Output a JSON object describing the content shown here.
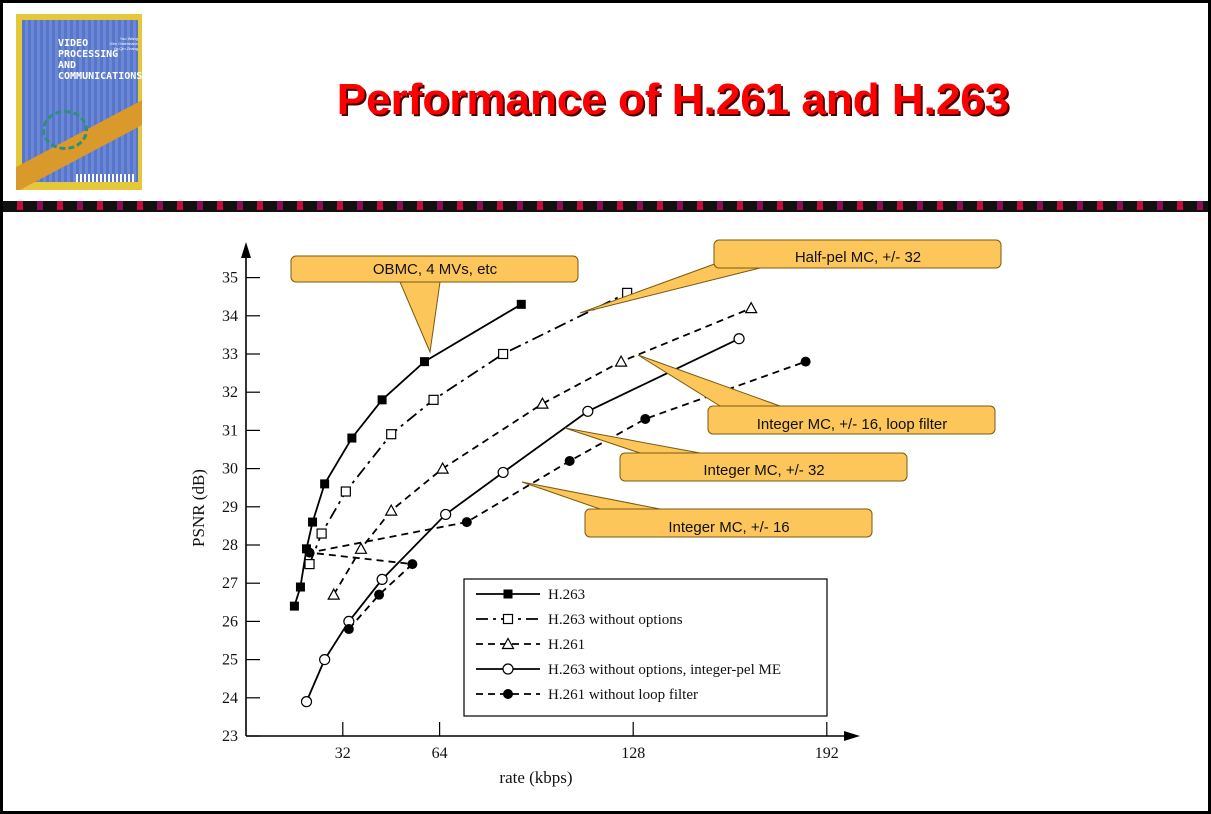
{
  "slide": {
    "title": "Performance of H.261 and H.263",
    "book_cover": {
      "lines": [
        "VIDEO",
        "PROCESSING",
        "AND",
        "COMMUNICATIONS"
      ],
      "authors": [
        "Yao Wang",
        "Jörn Ostermann",
        "Ya-Qin Zhang"
      ]
    }
  },
  "chart_data": {
    "type": "line",
    "xlabel": "rate (kbps)",
    "ylabel": "PSNR (dB)",
    "xlim": [
      0,
      192
    ],
    "ylim": [
      23,
      35
    ],
    "x_ticks": [
      32,
      64,
      128,
      192
    ],
    "y_ticks": [
      23,
      24,
      25,
      26,
      27,
      28,
      29,
      30,
      31,
      32,
      33,
      34,
      35
    ],
    "legend_position": "bottom-center",
    "series": [
      {
        "name": "H.263",
        "marker": "filled-square",
        "line": "solid",
        "x": [
          16,
          18,
          20,
          22,
          26,
          35,
          45,
          59,
          91
        ],
        "y": [
          26.4,
          26.9,
          27.9,
          28.6,
          29.6,
          30.8,
          31.8,
          32.8,
          34.3
        ]
      },
      {
        "name": "H.263 without options",
        "marker": "open-square",
        "line": "dash-dot",
        "x": [
          21,
          25,
          33,
          48,
          62,
          85,
          126
        ],
        "y": [
          27.5,
          28.3,
          29.4,
          30.9,
          31.8,
          33.0,
          34.6
        ]
      },
      {
        "name": "H.261",
        "marker": "open-triangle",
        "line": "dashed",
        "x": [
          29,
          38,
          48,
          65,
          98,
          124,
          167
        ],
        "y": [
          26.7,
          27.9,
          28.9,
          30.0,
          31.7,
          32.8,
          34.2
        ]
      },
      {
        "name": "H.263 without options, integer-pel ME",
        "marker": "open-circle",
        "line": "solid",
        "x": [
          20,
          26,
          34,
          45,
          66,
          85,
          113,
          163
        ],
        "y": [
          23.9,
          25.0,
          26.0,
          27.1,
          28.8,
          29.9,
          31.5,
          33.4
        ]
      },
      {
        "name": "H.261 without loop filter",
        "marker": "filled-circle",
        "line": "dashed",
        "x": [
          21,
          34,
          44,
          55,
          73,
          107,
          132,
          185
        ],
        "y": [
          27.8,
          25.8,
          26.7,
          27.5,
          28.6,
          30.2,
          31.3,
          32.8
        ]
      }
    ],
    "annotations": [
      "OBMC, 4 MVs, etc",
      "Half-pel MC, +/- 32",
      "Integer MC, +/- 16, loop filter",
      "Integer MC, +/- 32",
      "Integer MC, +/- 16"
    ]
  },
  "colors": {
    "title": "#ff0000",
    "callout_fill": "#fcc65a",
    "callout_border": "#7a5a10",
    "line": "#000000"
  }
}
